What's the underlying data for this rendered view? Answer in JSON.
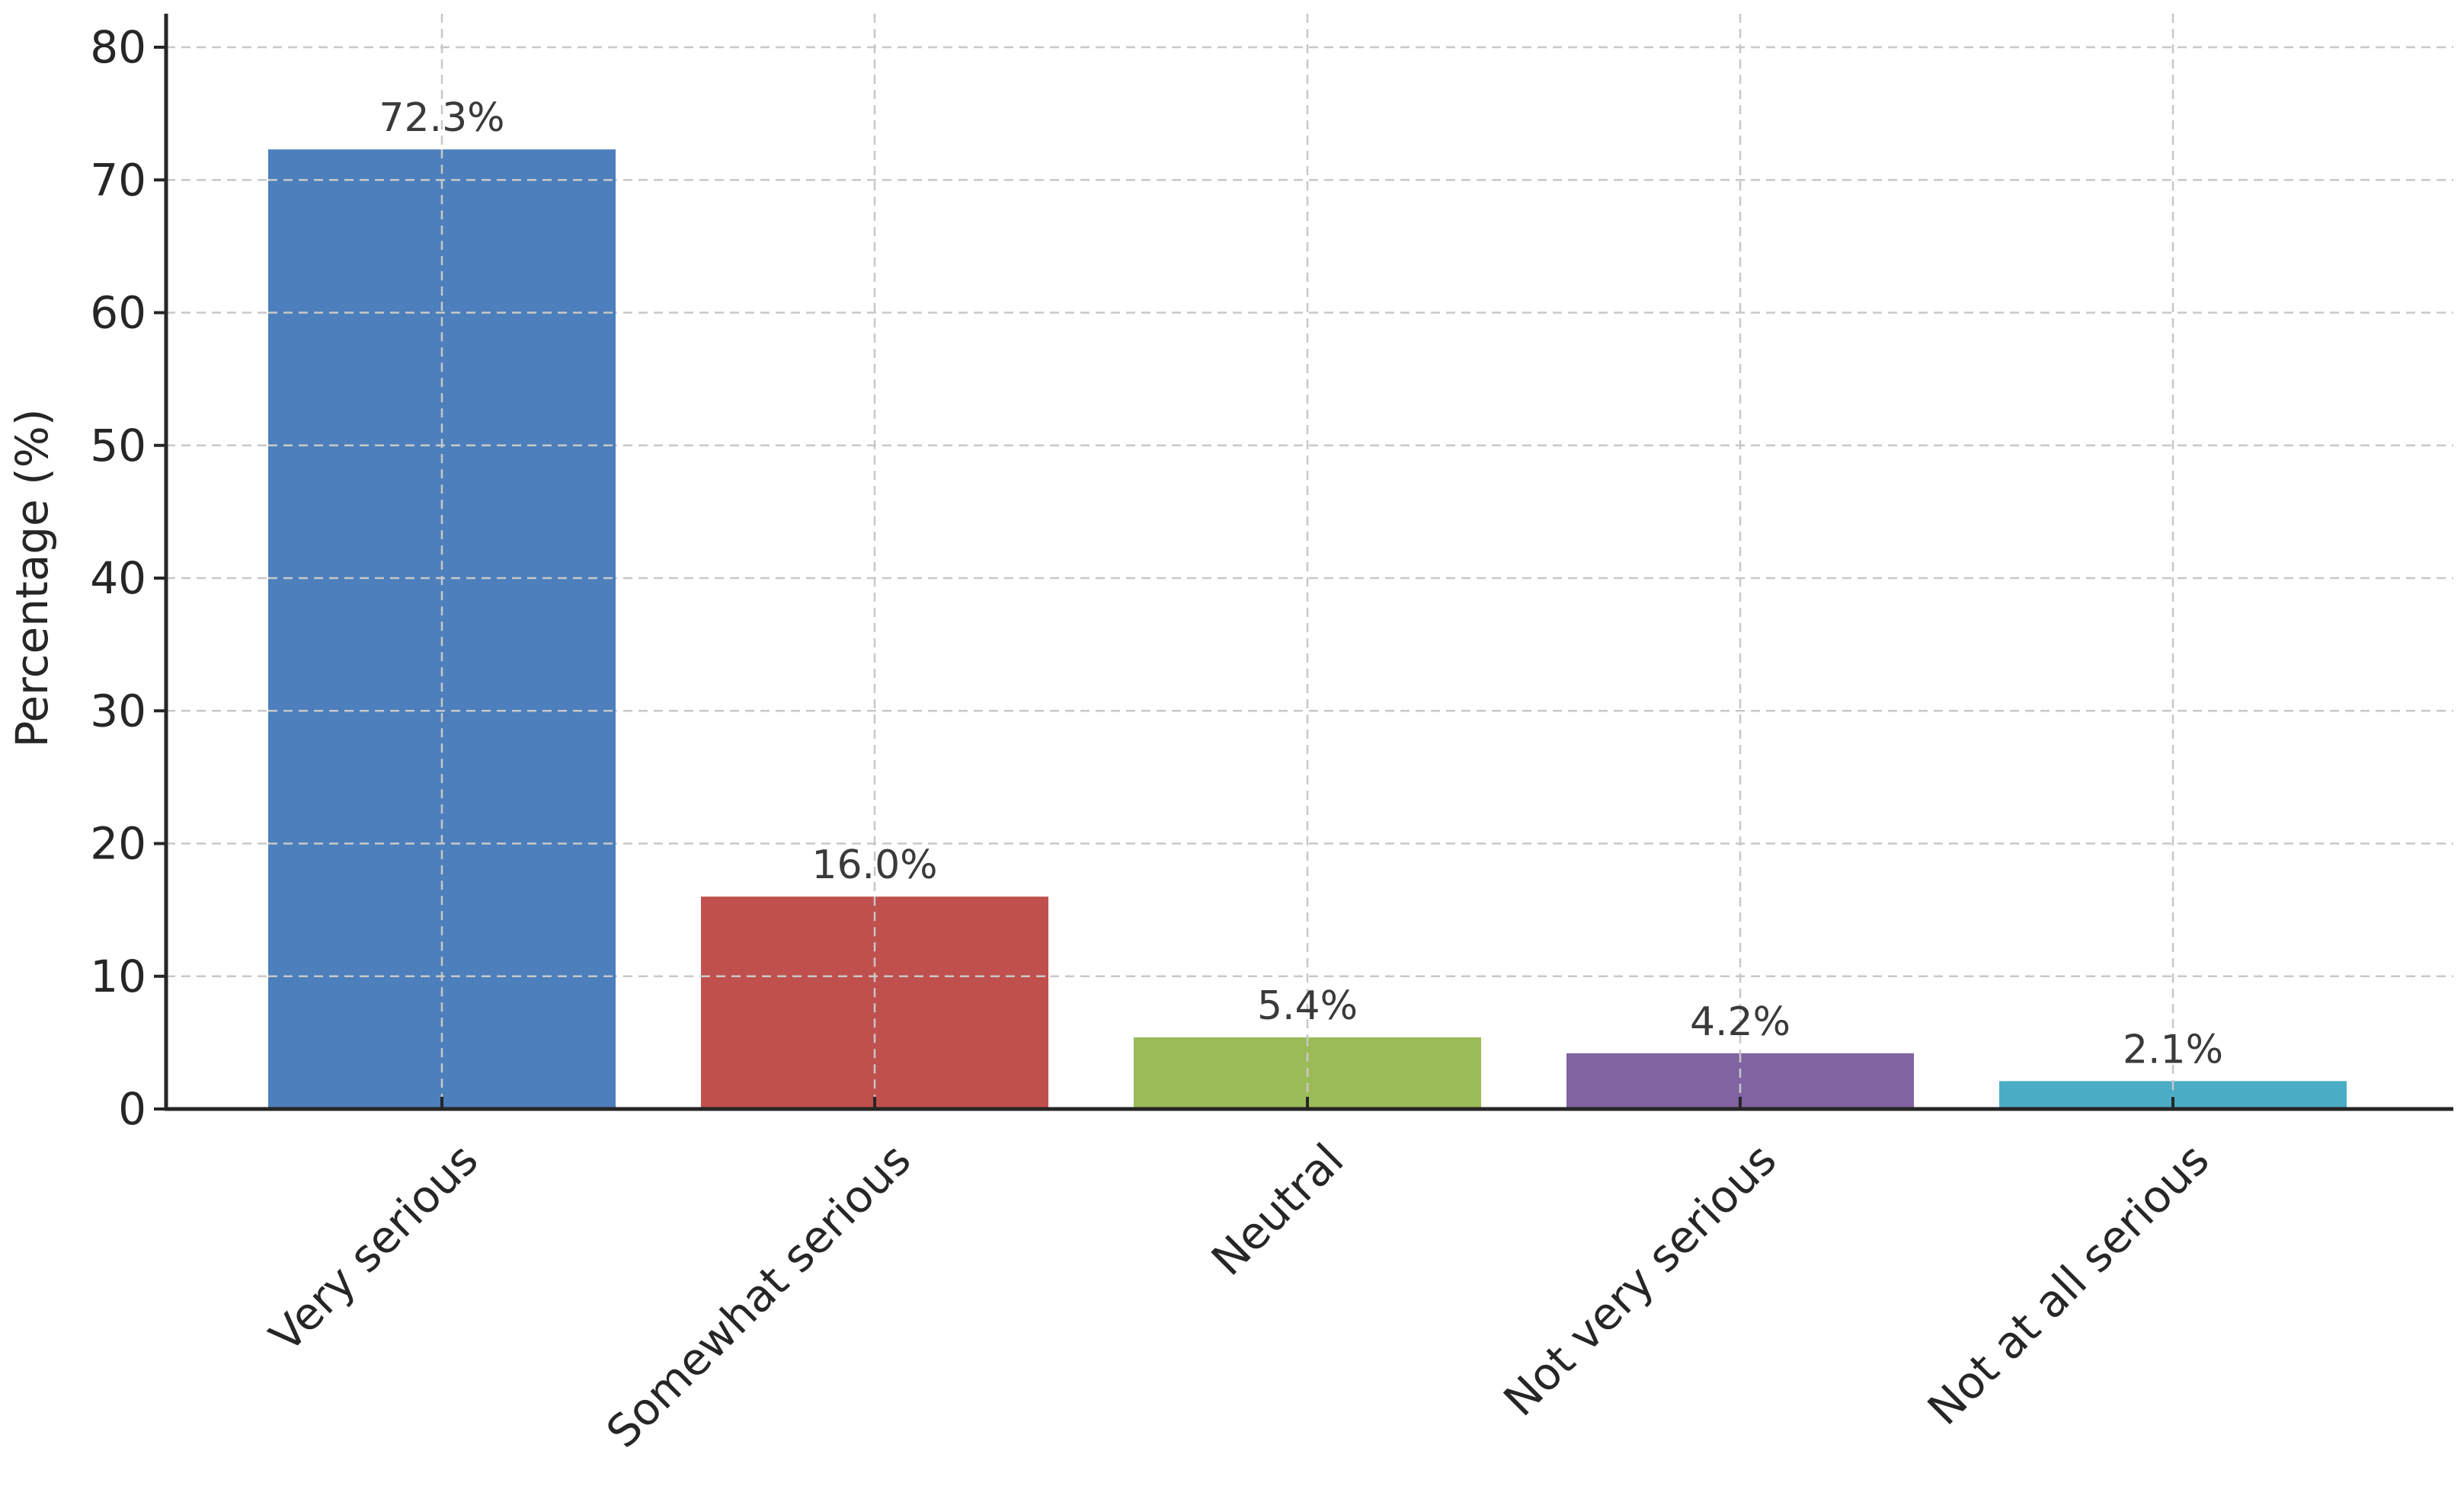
{
  "chart_data": {
    "type": "bar",
    "title": "",
    "xlabel": "",
    "ylabel": "Percentage (%)",
    "ylim": [
      0,
      80
    ],
    "yticks": [
      0,
      10,
      20,
      30,
      40,
      50,
      60,
      70,
      80
    ],
    "grid": true,
    "categories": [
      "Very serious",
      "Somewhat serious",
      "Neutral",
      "Not very serious",
      "Not at all serious"
    ],
    "values": [
      72.3,
      16.0,
      5.4,
      4.2,
      2.1
    ],
    "data_labels": [
      "72.3%",
      "16.0%",
      "5.4%",
      "4.2%",
      "2.1%"
    ],
    "colors": [
      "#4c7fbb",
      "#c0504d",
      "#9bbb59",
      "#8064a2",
      "#4bacc6"
    ]
  }
}
